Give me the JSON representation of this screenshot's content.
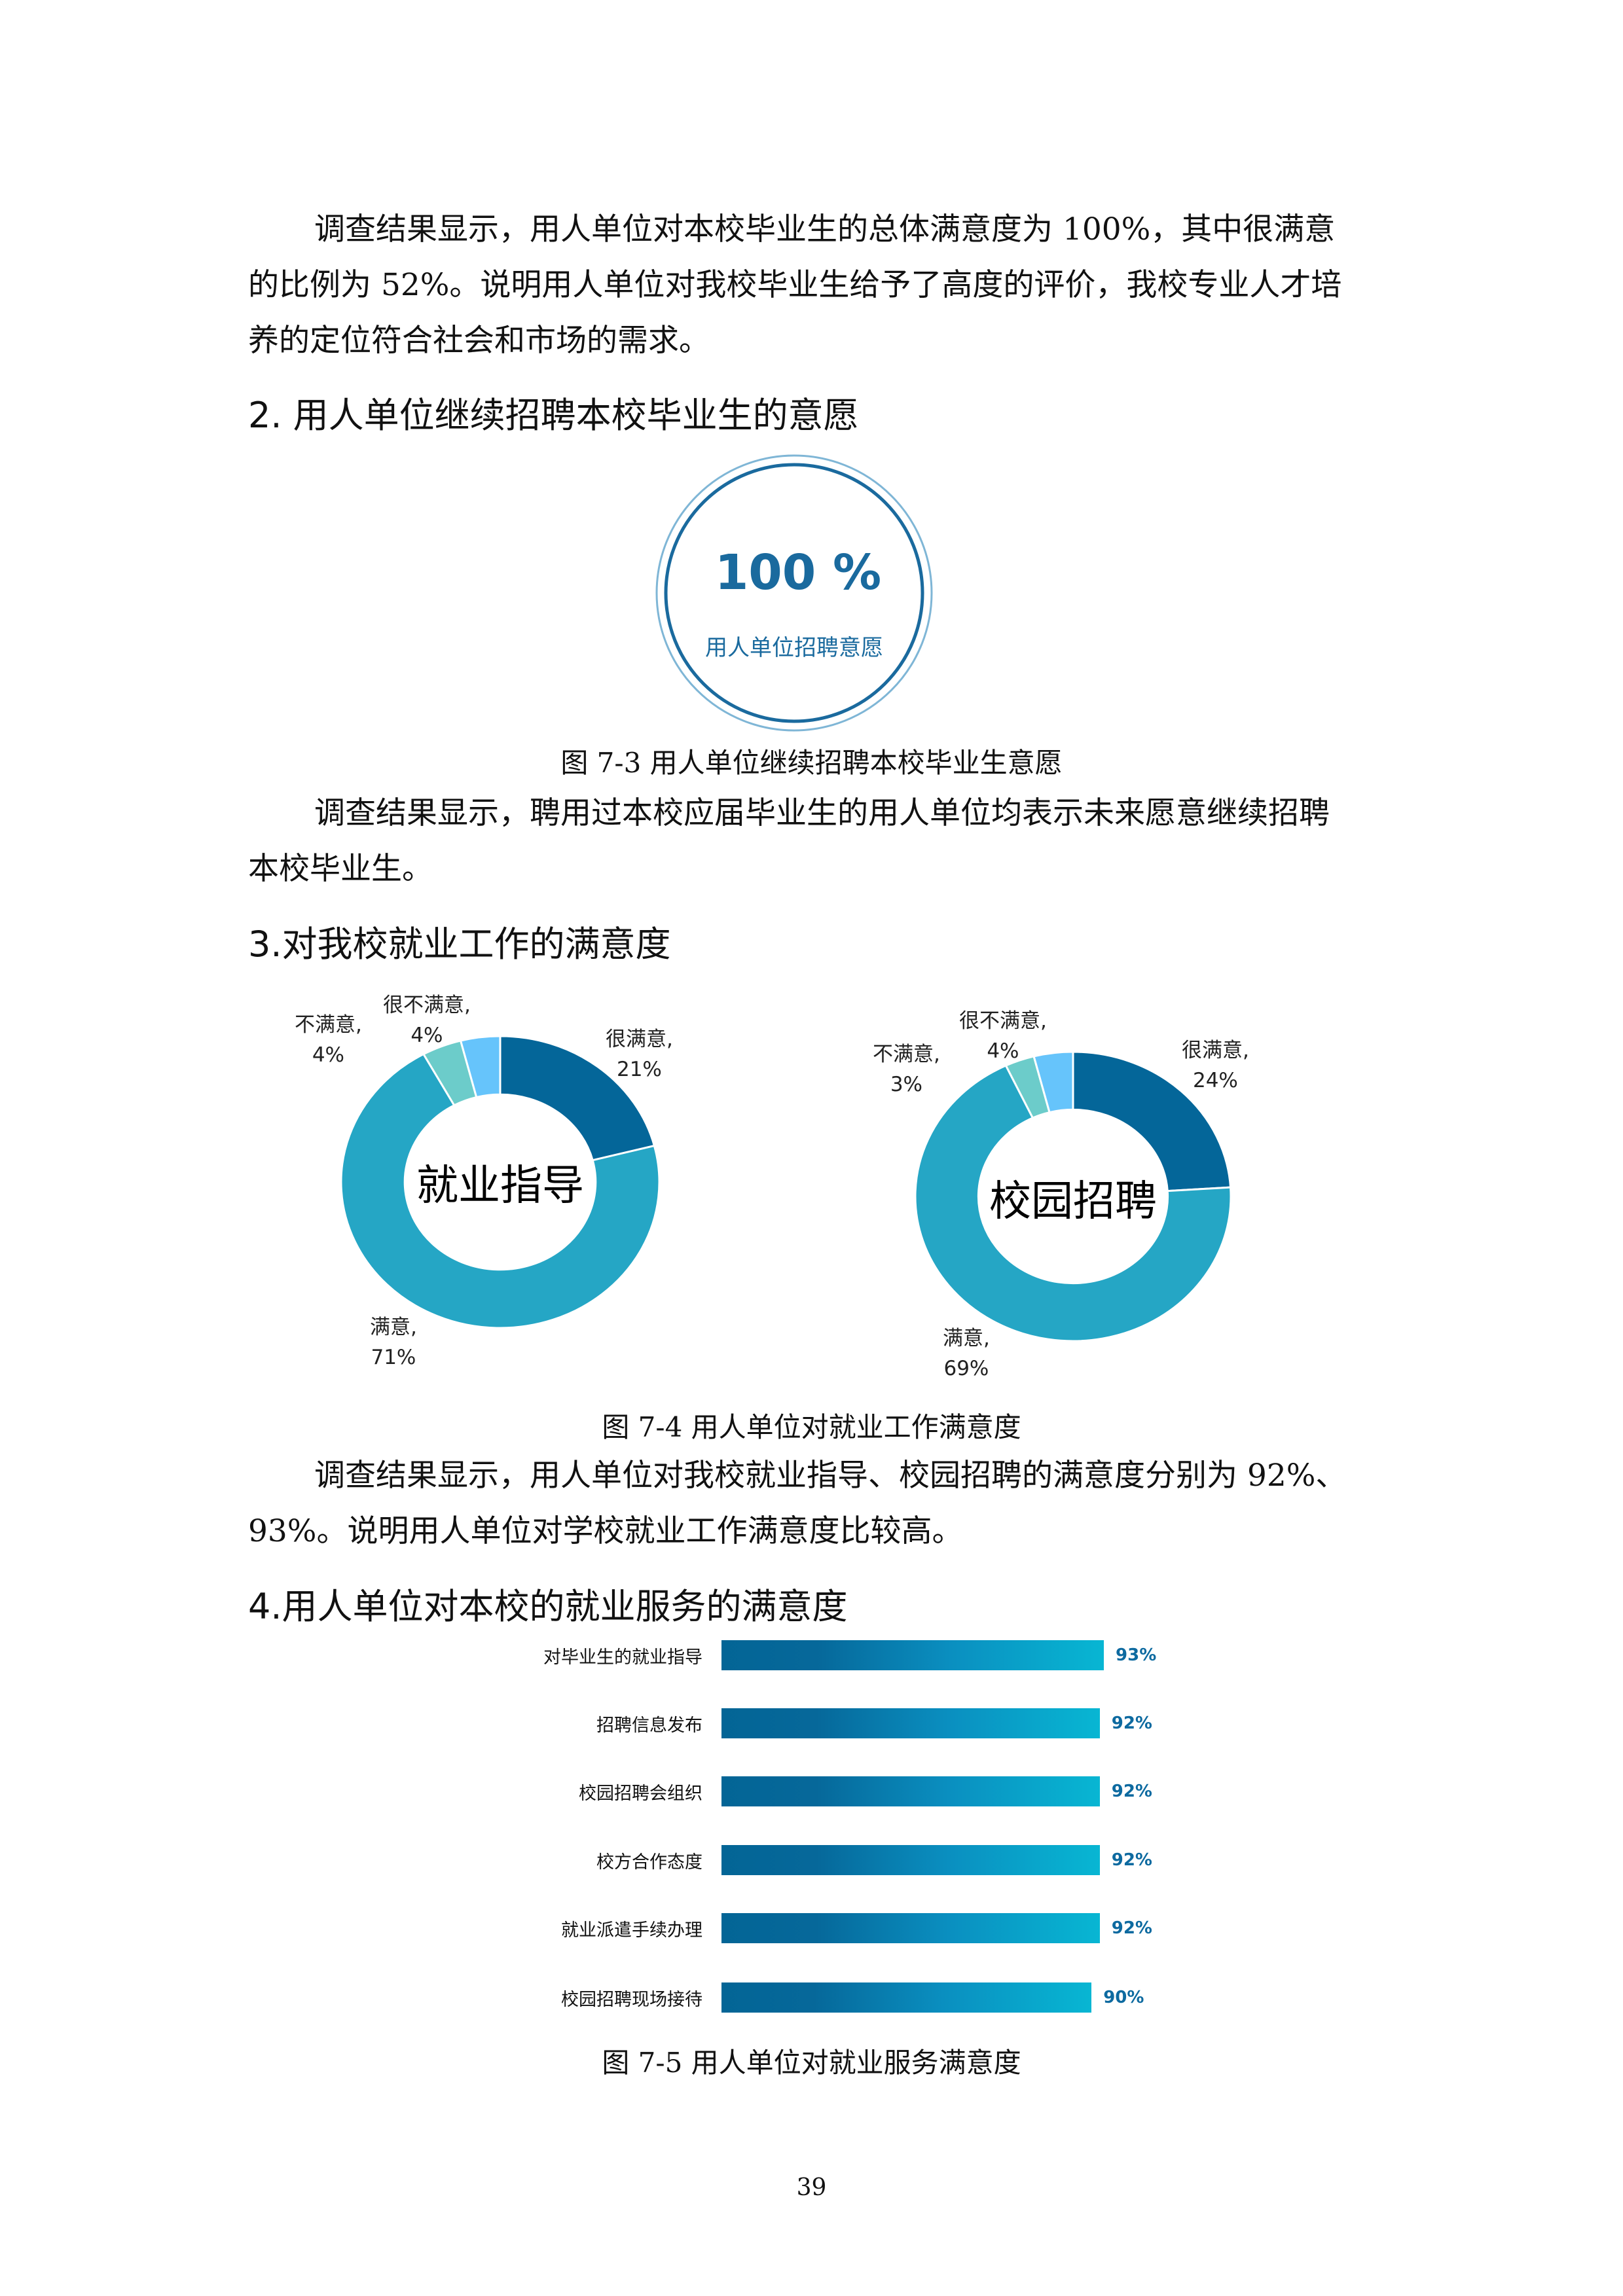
{
  "para1": [
    "调查结果显示，用人单位对本校毕业生的总体满意度为 100%，其中很满意",
    "的比例为 52%。说明用人单位对我校毕业生给予了高度的评价，我校专业人才培",
    "养的定位符合社会和市场的需求。"
  ],
  "heading2": "2.  用人单位继续招聘本校毕业生的意愿",
  "badge": {
    "value": "100 %",
    "label": "用人单位招聘意愿",
    "color": "#1a6a9e"
  },
  "caption3": "图 7-3  用人单位继续招聘本校毕业生意愿",
  "para2": [
    "调查结果显示，聘用过本校应届毕业生的用人单位均表示未来愿意继续招聘",
    "本校毕业生。"
  ],
  "heading3": "3.对我校就业工作的满意度",
  "chart_data": [
    {
      "type": "pie",
      "title": "就业指导",
      "categories": [
        "很满意",
        "满意",
        "不满意",
        "很不满意"
      ],
      "values": [
        21,
        71,
        4,
        4
      ],
      "labels": [
        [
          "很满意,",
          "21%"
        ],
        [
          "满意,",
          "71%"
        ],
        [
          "不满意,",
          "4%"
        ],
        [
          "很不满意,",
          "4%"
        ]
      ],
      "colors": [
        "#046699",
        "#25a6c5",
        "#6cccca",
        "#66c4fb"
      ]
    },
    {
      "type": "pie",
      "title": "校园招聘",
      "categories": [
        "很满意",
        "满意",
        "不满意",
        "很不满意"
      ],
      "values": [
        24,
        69,
        3,
        4
      ],
      "labels": [
        [
          "很满意,",
          "24%"
        ],
        [
          "满意,",
          "69%"
        ],
        [
          "不满意,",
          "3%"
        ],
        [
          "很不满意,",
          "4%"
        ]
      ],
      "colors": [
        "#046699",
        "#25a6c5",
        "#6cccca",
        "#66c4fb"
      ]
    },
    {
      "type": "bar",
      "orientation": "horizontal",
      "categories": [
        "对毕业生的就业指导",
        "招聘信息发布",
        "校园招聘会组织",
        "校方合作态度",
        "就业派遣手续办理",
        "校园招聘现场接待"
      ],
      "values": [
        93,
        92,
        92,
        92,
        92,
        90
      ],
      "value_labels": [
        "93%",
        "92%",
        "92%",
        "92%",
        "92%",
        "90%"
      ]
    }
  ],
  "caption4": "图 7-4  用人单位对就业工作满意度",
  "para3": [
    "调查结果显示，用人单位对我校就业指导、校园招聘的满意度分别为 92%、",
    "93%。说明用人单位对学校就业工作满意度比较高。"
  ],
  "heading4": "4.用人单位对本校的就业服务的满意度",
  "caption5": "图 7-5  用人单位对就业服务满意度",
  "page_number": "39"
}
